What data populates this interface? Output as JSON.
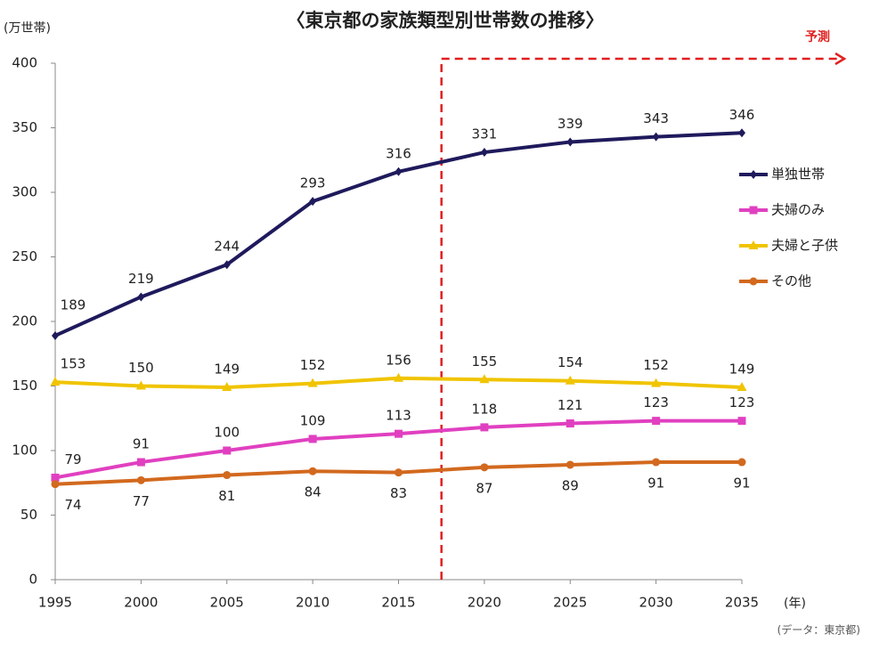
{
  "chart_data": {
    "type": "line",
    "title": "〈東京都の家族類型別世帯数の推移〉",
    "y_unit": "(万世帯)",
    "x_unit": "(年)",
    "source": "(データ：東京都)",
    "forecast": {
      "label": "予測",
      "x": 2017.5,
      "color": "#e02020"
    },
    "x": [
      1995,
      2000,
      2005,
      2010,
      2015,
      2020,
      2025,
      2030,
      2035
    ],
    "xlim": [
      1995,
      2035
    ],
    "xticks": [
      1995,
      2000,
      2005,
      2010,
      2015,
      2020,
      2025,
      2030,
      2035
    ],
    "ylim": [
      0,
      400
    ],
    "yticks": [
      0,
      50,
      100,
      150,
      200,
      250,
      300,
      350,
      400
    ],
    "legend": "right",
    "series": [
      {
        "name": "単独世帯",
        "color": "#1f1a5c",
        "marker": "diamond",
        "values": [
          189,
          219,
          244,
          293,
          316,
          331,
          339,
          343,
          346
        ]
      },
      {
        "name": "夫婦のみ",
        "color": "#e040c0",
        "marker": "square",
        "values": [
          79,
          91,
          100,
          109,
          113,
          118,
          121,
          123,
          123
        ]
      },
      {
        "name": "夫婦と子供",
        "color": "#f0c400",
        "marker": "triangle",
        "values": [
          153,
          150,
          149,
          152,
          156,
          155,
          154,
          152,
          149
        ]
      },
      {
        "name": "その他",
        "color": "#d2691e",
        "marker": "circle",
        "values": [
          74,
          77,
          81,
          84,
          83,
          87,
          89,
          91,
          91
        ]
      }
    ]
  }
}
